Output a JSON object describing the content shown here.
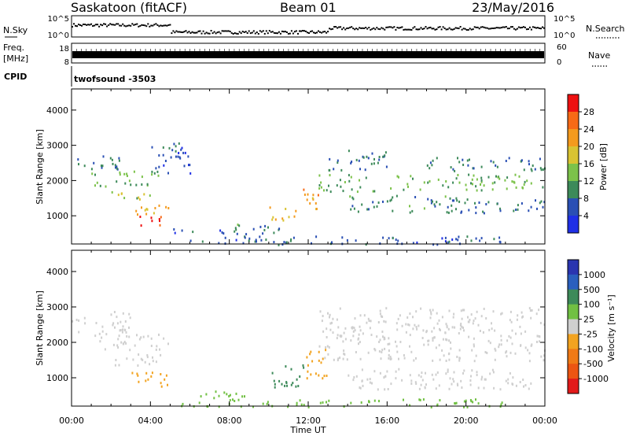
{
  "header": {
    "station": "Saskatoon (fitACF)",
    "beam": "Beam 01",
    "date": "23/May/2016"
  },
  "top_panels": {
    "nsky_label": "N.Sky",
    "nsky_ticks": [
      "10^5",
      "10^0"
    ],
    "nsearch_label": "N.Search",
    "nsearch_ticks": [
      "10^5",
      "10^0"
    ],
    "freq_label_1": "Freq.",
    "freq_label_2": "[MHz]",
    "freq_ticks": [
      "18",
      "8"
    ],
    "nave_label": "Nave",
    "nave_ticks": [
      "60",
      "0"
    ],
    "cpid_label": "CPID",
    "cpid_value": "twofsound -3503"
  },
  "chart_data": [
    {
      "type": "heatmap",
      "name": "power",
      "ylabel": "Slant Range [km]",
      "xlabel": "",
      "ylim": [
        200,
        4600
      ],
      "y_ticks": [
        "4000",
        "3000",
        "2000",
        "1000"
      ],
      "x_ticks": [
        "00:00",
        "04:00",
        "08:00",
        "12:00",
        "16:00",
        "20:00",
        "00:00"
      ],
      "xlim_hours": [
        0,
        24
      ],
      "colorbar": {
        "label": "Power [dB]",
        "ticks": [
          "28",
          "24",
          "20",
          "16",
          "12",
          "8",
          "4"
        ],
        "colors": [
          "#ee1111",
          "#f76a16",
          "#f49a1d",
          "#d9c332",
          "#7cc24a",
          "#3d8a5a",
          "#2a4fb4",
          "#1f2fe6"
        ]
      },
      "regions": [
        {
          "t0": 0.0,
          "t1": 2.5,
          "r0": 2350,
          "r1": 2800,
          "level": 8
        },
        {
          "t0": 1.0,
          "t1": 4.5,
          "r0": 1850,
          "r1": 2300,
          "level": 12
        },
        {
          "t0": 2.0,
          "t1": 4.0,
          "r0": 1400,
          "r1": 1700,
          "level": 14
        },
        {
          "t0": 3.2,
          "t1": 4.7,
          "r0": 750,
          "r1": 1050,
          "level": 27
        },
        {
          "t0": 3.0,
          "t1": 5.0,
          "r0": 1050,
          "r1": 1400,
          "level": 20
        },
        {
          "t0": 4.0,
          "t1": 6.0,
          "r0": 2200,
          "r1": 3100,
          "level": 6
        },
        {
          "t0": 5.0,
          "t1": 9.0,
          "r0": 500,
          "r1": 650,
          "level": 6
        },
        {
          "t0": 8.0,
          "t1": 10.5,
          "r0": 500,
          "r1": 800,
          "level": 9
        },
        {
          "t0": 10.0,
          "t1": 11.5,
          "r0": 900,
          "r1": 1300,
          "level": 18
        },
        {
          "t0": 11.5,
          "t1": 12.5,
          "r0": 1100,
          "r1": 1800,
          "level": 20
        },
        {
          "t0": 12.5,
          "t1": 15.5,
          "r0": 1700,
          "r1": 2200,
          "level": 11
        },
        {
          "t0": 13.0,
          "t1": 16.0,
          "r0": 2300,
          "r1": 2900,
          "level": 8
        },
        {
          "t0": 14.0,
          "t1": 20.0,
          "r0": 1100,
          "r1": 1600,
          "level": 9
        },
        {
          "t0": 16.0,
          "t1": 24.0,
          "r0": 1750,
          "r1": 2200,
          "level": 12
        },
        {
          "t0": 18.0,
          "t1": 24.0,
          "r0": 2300,
          "r1": 2700,
          "level": 8
        },
        {
          "t0": 20.0,
          "t1": 24.0,
          "r0": 1100,
          "r1": 1500,
          "level": 7
        },
        {
          "t0": 6.0,
          "t1": 22.0,
          "r0": 200,
          "r1": 450,
          "level": 6
        }
      ]
    },
    {
      "type": "heatmap",
      "name": "velocity",
      "ylabel": "Slant Range [km]",
      "xlabel": "Time UT",
      "ylim": [
        200,
        4600
      ],
      "y_ticks": [
        "4000",
        "3000",
        "2000",
        "1000"
      ],
      "x_ticks": [
        "00:00",
        "04:00",
        "08:00",
        "12:00",
        "16:00",
        "20:00",
        "00:00"
      ],
      "xlim_hours": [
        0,
        24
      ],
      "colorbar": {
        "label": "Velocity [m s⁻¹]",
        "ticks": [
          "1000",
          "500",
          "100",
          "25",
          "-25",
          "-100",
          "-500",
          "-1000"
        ],
        "colors": [
          "#2a35b0",
          "#2a5fbe",
          "#3d8a5a",
          "#71c043",
          "#cfcfcf",
          "#f2a320",
          "#f07a16",
          "#ec5512",
          "#e21a1a"
        ]
      },
      "regions": [
        {
          "t0": 0.0,
          "t1": 3.0,
          "r0": 2300,
          "r1": 2900,
          "level": 0
        },
        {
          "t0": 1.0,
          "t1": 5.0,
          "r0": 1800,
          "r1": 2300,
          "level": 0
        },
        {
          "t0": 2.0,
          "t1": 4.5,
          "r0": 1300,
          "r1": 1700,
          "level": 1
        },
        {
          "t0": 3.0,
          "t1": 5.0,
          "r0": 750,
          "r1": 1200,
          "level": -80
        },
        {
          "t0": 5.5,
          "t1": 9.0,
          "r0": 450,
          "r1": 650,
          "level": 60
        },
        {
          "t0": 10.0,
          "t1": 11.8,
          "r0": 750,
          "r1": 1400,
          "level": 120
        },
        {
          "t0": 11.8,
          "t1": 13.0,
          "r0": 1000,
          "r1": 1900,
          "level": -90
        },
        {
          "t0": 12.5,
          "t1": 24.0,
          "r0": 1500,
          "r1": 3000,
          "level": 0
        },
        {
          "t0": 14.0,
          "t1": 23.5,
          "r0": 700,
          "r1": 1300,
          "level": 0
        },
        {
          "t0": 5.0,
          "t1": 22.0,
          "r0": 200,
          "r1": 420,
          "level": 50
        }
      ]
    }
  ]
}
